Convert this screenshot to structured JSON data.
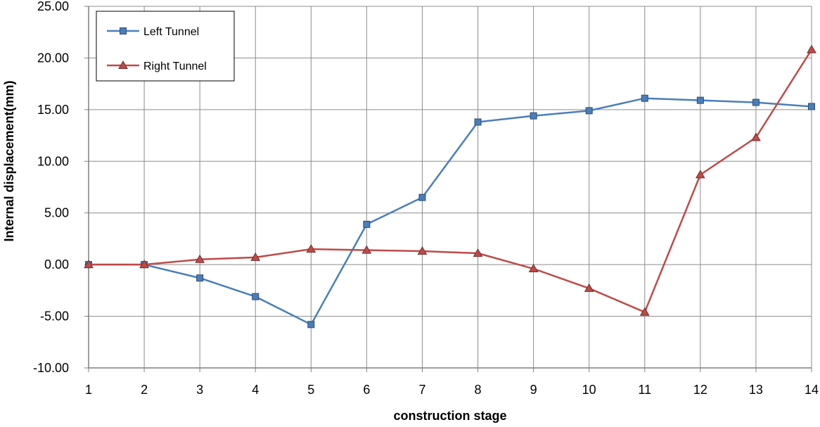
{
  "chart_data": {
    "type": "line",
    "xlabel": "construction stage",
    "ylabel": "Internal displacement(mm)",
    "x": [
      1,
      2,
      3,
      4,
      5,
      6,
      7,
      8,
      9,
      10,
      11,
      12,
      13,
      14
    ],
    "x_tick_labels": [
      "1",
      "2",
      "3",
      "4",
      "5",
      "6",
      "7",
      "8",
      "9",
      "10",
      "11",
      "12",
      "13",
      "14"
    ],
    "y_tick_values": [
      -10,
      -5,
      0,
      5,
      10,
      15,
      20,
      25
    ],
    "y_tick_labels": [
      "-10.00",
      "-5.00",
      "0.00",
      "5.00",
      "10.00",
      "15.00",
      "20.00",
      "25.00"
    ],
    "ylim": [
      -10,
      25
    ],
    "grid": true,
    "legend_position": "top-left",
    "series": [
      {
        "name": "Left Tunnel",
        "color": "#4a7ebb",
        "marker": "square",
        "values": [
          0.0,
          0.0,
          -1.3,
          -3.1,
          -5.8,
          3.9,
          6.5,
          13.8,
          14.4,
          14.9,
          16.1,
          15.9,
          15.7,
          15.3
        ]
      },
      {
        "name": "Right Tunnel",
        "color": "#be4b48",
        "marker": "triangle",
        "values": [
          0.0,
          0.0,
          0.5,
          0.7,
          1.5,
          1.4,
          1.3,
          1.1,
          -0.4,
          -2.3,
          -4.6,
          8.7,
          12.3,
          20.8
        ]
      }
    ]
  }
}
